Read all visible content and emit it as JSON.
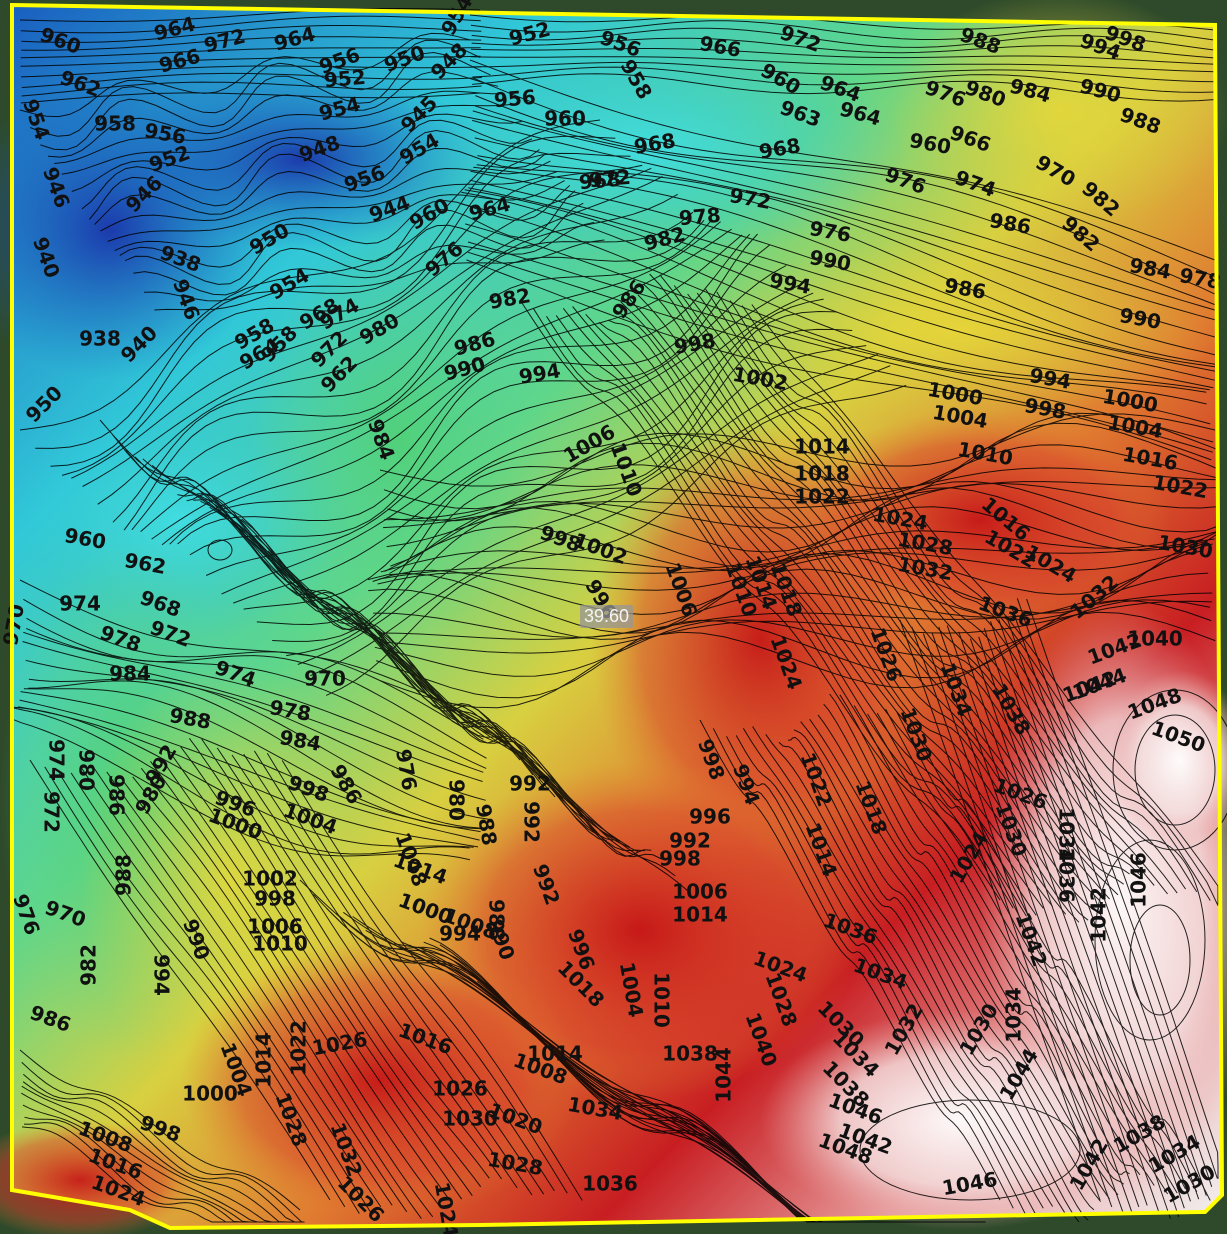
{
  "map": {
    "readout_value": "39.60",
    "boundary_color": "#ffff00",
    "contour_color": "#000000",
    "contour_labels": [
      "954",
      "964",
      "972",
      "964",
      "960",
      "966",
      "956",
      "950",
      "948",
      "952",
      "956",
      "966",
      "972",
      "988",
      "994",
      "998",
      "962",
      "958",
      "956",
      "952",
      "954",
      "952",
      "945",
      "956",
      "958",
      "960",
      "964",
      "963",
      "964",
      "960",
      "976",
      "980",
      "984",
      "990",
      "988",
      "954",
      "948",
      "954",
      "968",
      "972",
      "968",
      "960",
      "966",
      "976",
      "974",
      "970",
      "982",
      "946",
      "946",
      "956",
      "944",
      "960",
      "964",
      "968",
      "972",
      "978",
      "982",
      "976",
      "986",
      "982",
      "984",
      "978",
      "940",
      "938",
      "950",
      "954",
      "958",
      "964",
      "968",
      "974",
      "980",
      "976",
      "982",
      "986",
      "990",
      "994",
      "986",
      "990",
      "938",
      "940",
      "946",
      "950",
      "958",
      "962",
      "972",
      "984",
      "986",
      "990",
      "994",
      "998",
      "1002",
      "1000",
      "994",
      "998",
      "1000",
      "1004",
      "1006",
      "1010",
      "1014",
      "1018",
      "1022",
      "1004",
      "1010",
      "1016",
      "1022",
      "1024",
      "1028",
      "1032",
      "1030",
      "1036",
      "1032",
      "1024",
      "1022",
      "1016",
      "970",
      "960",
      "962",
      "968",
      "972",
      "974",
      "978",
      "984",
      "974",
      "970",
      "978",
      "984",
      "986",
      "976",
      "988",
      "980",
      "996",
      "998",
      "1002",
      "1006",
      "1010",
      "1014",
      "1018",
      "1024",
      "1026",
      "1030",
      "1034",
      "1038",
      "1042",
      "1040",
      "1044",
      "1042",
      "1048",
      "1050",
      "974",
      "972",
      "986",
      "980",
      "992",
      "996",
      "1000",
      "1004",
      "992",
      "998",
      "988",
      "980",
      "992",
      "998",
      "994",
      "996",
      "992",
      "998",
      "1006",
      "1014",
      "1022",
      "1018",
      "1014",
      "1024",
      "1030",
      "1026",
      "1034",
      "1036",
      "1042",
      "1046",
      "1048",
      "976",
      "982",
      "970",
      "988",
      "994",
      "990",
      "1002",
      "998",
      "1006",
      "1010",
      "1014",
      "1000",
      "1008",
      "994",
      "988",
      "990",
      "992",
      "996",
      "1004",
      "1010",
      "1018",
      "1024",
      "1028",
      "1030",
      "1034",
      "1036",
      "1040",
      "1044",
      "1038",
      "1042",
      "1034",
      "1030",
      "1032",
      "1034",
      "1038",
      "1042",
      "1046",
      "1048",
      "1046",
      "1044",
      "1038",
      "1034",
      "1030",
      "1042",
      "986",
      "1008",
      "1016",
      "1024",
      "998",
      "1000",
      "1004",
      "1014",
      "1022",
      "1026",
      "1016",
      "1028",
      "1032",
      "1026",
      "1024",
      "1026",
      "1030",
      "1020",
      "1034",
      "1028",
      "1036",
      "1008",
      "1014"
    ]
  }
}
